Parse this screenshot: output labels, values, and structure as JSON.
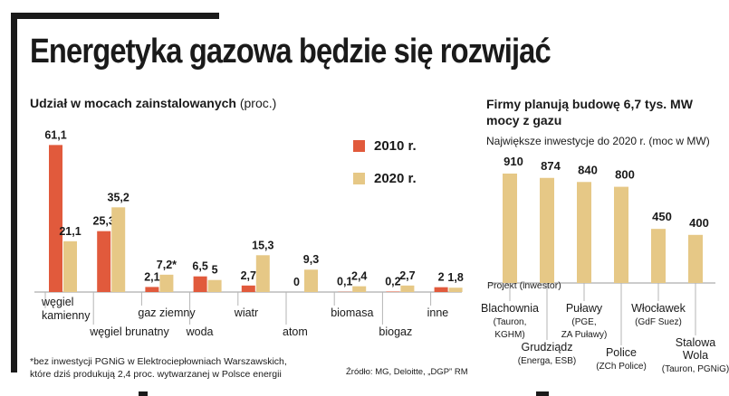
{
  "title": "Energetyka gazowa będzie się rozwijać",
  "colors": {
    "c2010": "#e15a3c",
    "c2020": "#e6c886",
    "grid": "#b5b5b5",
    "text": "#1a1a1a"
  },
  "chart_data": [
    {
      "type": "bar",
      "title_bold": "Udział w mocach zainstalowanych",
      "title_unit": "(proc.)",
      "categories": [
        "węgiel kamienny",
        "węgiel brunatny",
        "gaz ziemny",
        "woda",
        "wiatr",
        "atom",
        "biomasa",
        "biogaz",
        "inne"
      ],
      "category_labels": [
        [
          "węgiel",
          "kamienny"
        ],
        [
          "węgiel brunatny"
        ],
        [
          "gaz ziemny"
        ],
        [
          "woda"
        ],
        [
          "wiatr"
        ],
        [
          "atom"
        ],
        [
          "biomasa"
        ],
        [
          "biogaz"
        ],
        [
          "inne"
        ]
      ],
      "series": [
        {
          "name": "2010 r.",
          "values": [
            61.1,
            25.3,
            2.1,
            6.5,
            2.7,
            0,
            0.1,
            0.2,
            2
          ],
          "labels": [
            "61,1",
            "25,3",
            "2,1",
            "6,5",
            "2,7",
            "0",
            "0,1",
            "0,2",
            "2"
          ]
        },
        {
          "name": "2020 r.",
          "values": [
            21.1,
            35.2,
            7.2,
            5,
            15.3,
            9.3,
            2.4,
            2.7,
            1.8
          ],
          "labels": [
            "21,1",
            "35,2",
            "7,2*",
            "5",
            "15,3",
            "9,3",
            "2,4",
            "2,7",
            "1,8"
          ]
        }
      ],
      "ylim": [
        0,
        65
      ]
    },
    {
      "type": "bar",
      "title": "Firmy planują budowę 6,7 tys. MW mocy z gazu",
      "subtitle": "Największe inwestycje do 2020 r. (moc w MW)",
      "axis_caption": "Projekt (inwestor)",
      "categories": [
        "Blachownia",
        "Grudziądz",
        "Puławy",
        "Police",
        "Włocławek",
        "Stalowa Wola"
      ],
      "category_labels": [
        [
          "Blachownia",
          "(Tauron,",
          "KGHM)"
        ],
        [
          "Grudziądz",
          "(Energa, ESB)"
        ],
        [
          "Puławy",
          "(PGE,",
          "ZA Puławy)"
        ],
        [
          "Police",
          "(ZCh Police)"
        ],
        [
          "Włocławek",
          "(GdF Suez)"
        ],
        [
          "Stalowa",
          "Wola",
          "(Tauron, PGNiG)"
        ]
      ],
      "values": [
        910,
        874,
        840,
        800,
        450,
        400
      ],
      "labels": [
        "910",
        "874",
        "840",
        "800",
        "450",
        "400"
      ],
      "ylim": [
        0,
        1000
      ]
    }
  ],
  "notes": {
    "footnote": [
      "*bez inwestycji PGNiG w Elektrociepłowniach Warszawskich,",
      "które dziś produkują 2,4 proc. wytwarzanej w Polsce energii"
    ],
    "source": "Źródło: MG, Deloitte, „DGP” RM"
  }
}
